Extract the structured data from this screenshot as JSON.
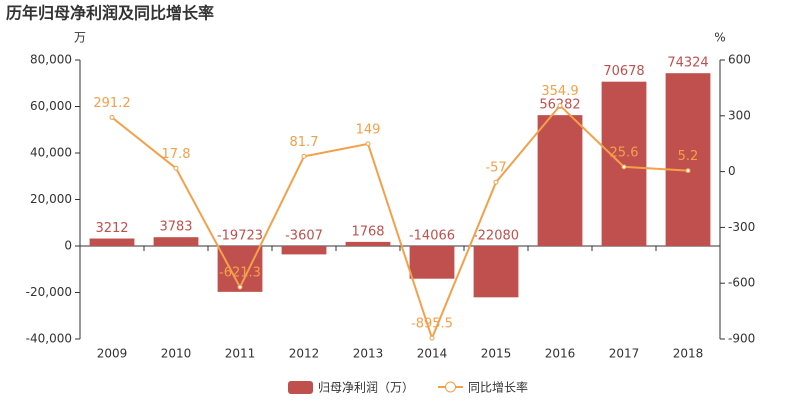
{
  "chart_data": {
    "type": "bar-line",
    "title": "历年归母净利润及同比增长率",
    "y_label": "万",
    "y2_label": "%",
    "categories": [
      "2009",
      "2010",
      "2011",
      "2012",
      "2013",
      "2014",
      "2015",
      "2016",
      "2017",
      "2018"
    ],
    "series": [
      {
        "name": "归母净利润（万）",
        "type": "bar",
        "color": "#c0504d",
        "values": [
          3212,
          3783,
          -19723,
          -3607,
          1768,
          -14066,
          -22080,
          56282,
          70678,
          74324
        ]
      },
      {
        "name": "同比增长率",
        "type": "line",
        "axis": "y2",
        "color": "#f4a04a",
        "values": [
          291.2,
          17.8,
          -621.3,
          81.7,
          149,
          -895.5,
          -57,
          354.9,
          25.6,
          5.2
        ]
      }
    ],
    "ylim": [
      -40000,
      80000
    ],
    "yticks": [
      {
        "value": -40000,
        "label": "-40,000"
      },
      {
        "value": -20000,
        "label": "-20,000"
      },
      0,
      {
        "value": 20000,
        "label": "20,000"
      },
      {
        "value": 40000,
        "label": "40,000"
      },
      {
        "value": 60000,
        "label": "60,000"
      },
      {
        "value": 80000,
        "label": "80,000"
      }
    ],
    "y2lim": [
      -900,
      600
    ],
    "y2ticks": [
      -900,
      -600,
      -300,
      0,
      300,
      600
    ]
  }
}
